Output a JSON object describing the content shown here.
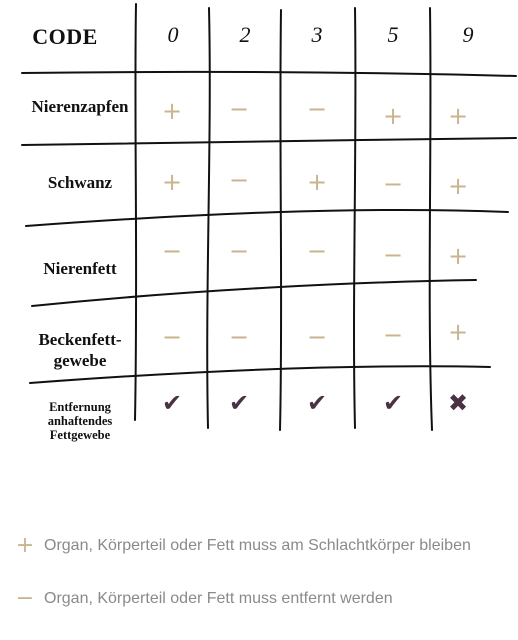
{
  "table": {
    "header_label": "CODE",
    "columns": [
      "0",
      "2",
      "3",
      "5",
      "9"
    ],
    "rows": [
      {
        "label": "Nierenzapfen",
        "values": [
          "+",
          "−",
          "−",
          "+",
          "+"
        ]
      },
      {
        "label": "Schwanz",
        "values": [
          "+",
          "−",
          "+",
          "−",
          "+"
        ]
      },
      {
        "label": "Nierenfett",
        "values": [
          "−",
          "−",
          "−",
          "−",
          "+"
        ]
      },
      {
        "label": "Beckenfett-\ngewebe",
        "values": [
          "−",
          "−",
          "−",
          "−",
          "+"
        ]
      },
      {
        "label": "Entfernung\nanhaftendes\nFettgewebe",
        "values": [
          "✔",
          "✔",
          "✔",
          "✔",
          "✖"
        ]
      }
    ]
  },
  "legend": [
    {
      "symbol": "+",
      "text": "Organ, Körperteil oder Fett muss am Schlachtkörper bleiben"
    },
    {
      "symbol": "−",
      "text": "Organ, Körperteil oder Fett muss entfernt werden"
    }
  ],
  "colors": {
    "plus_minus": "#c9b48f",
    "check_cross": "#4a3143",
    "legend_text": "#8a8a8a"
  }
}
